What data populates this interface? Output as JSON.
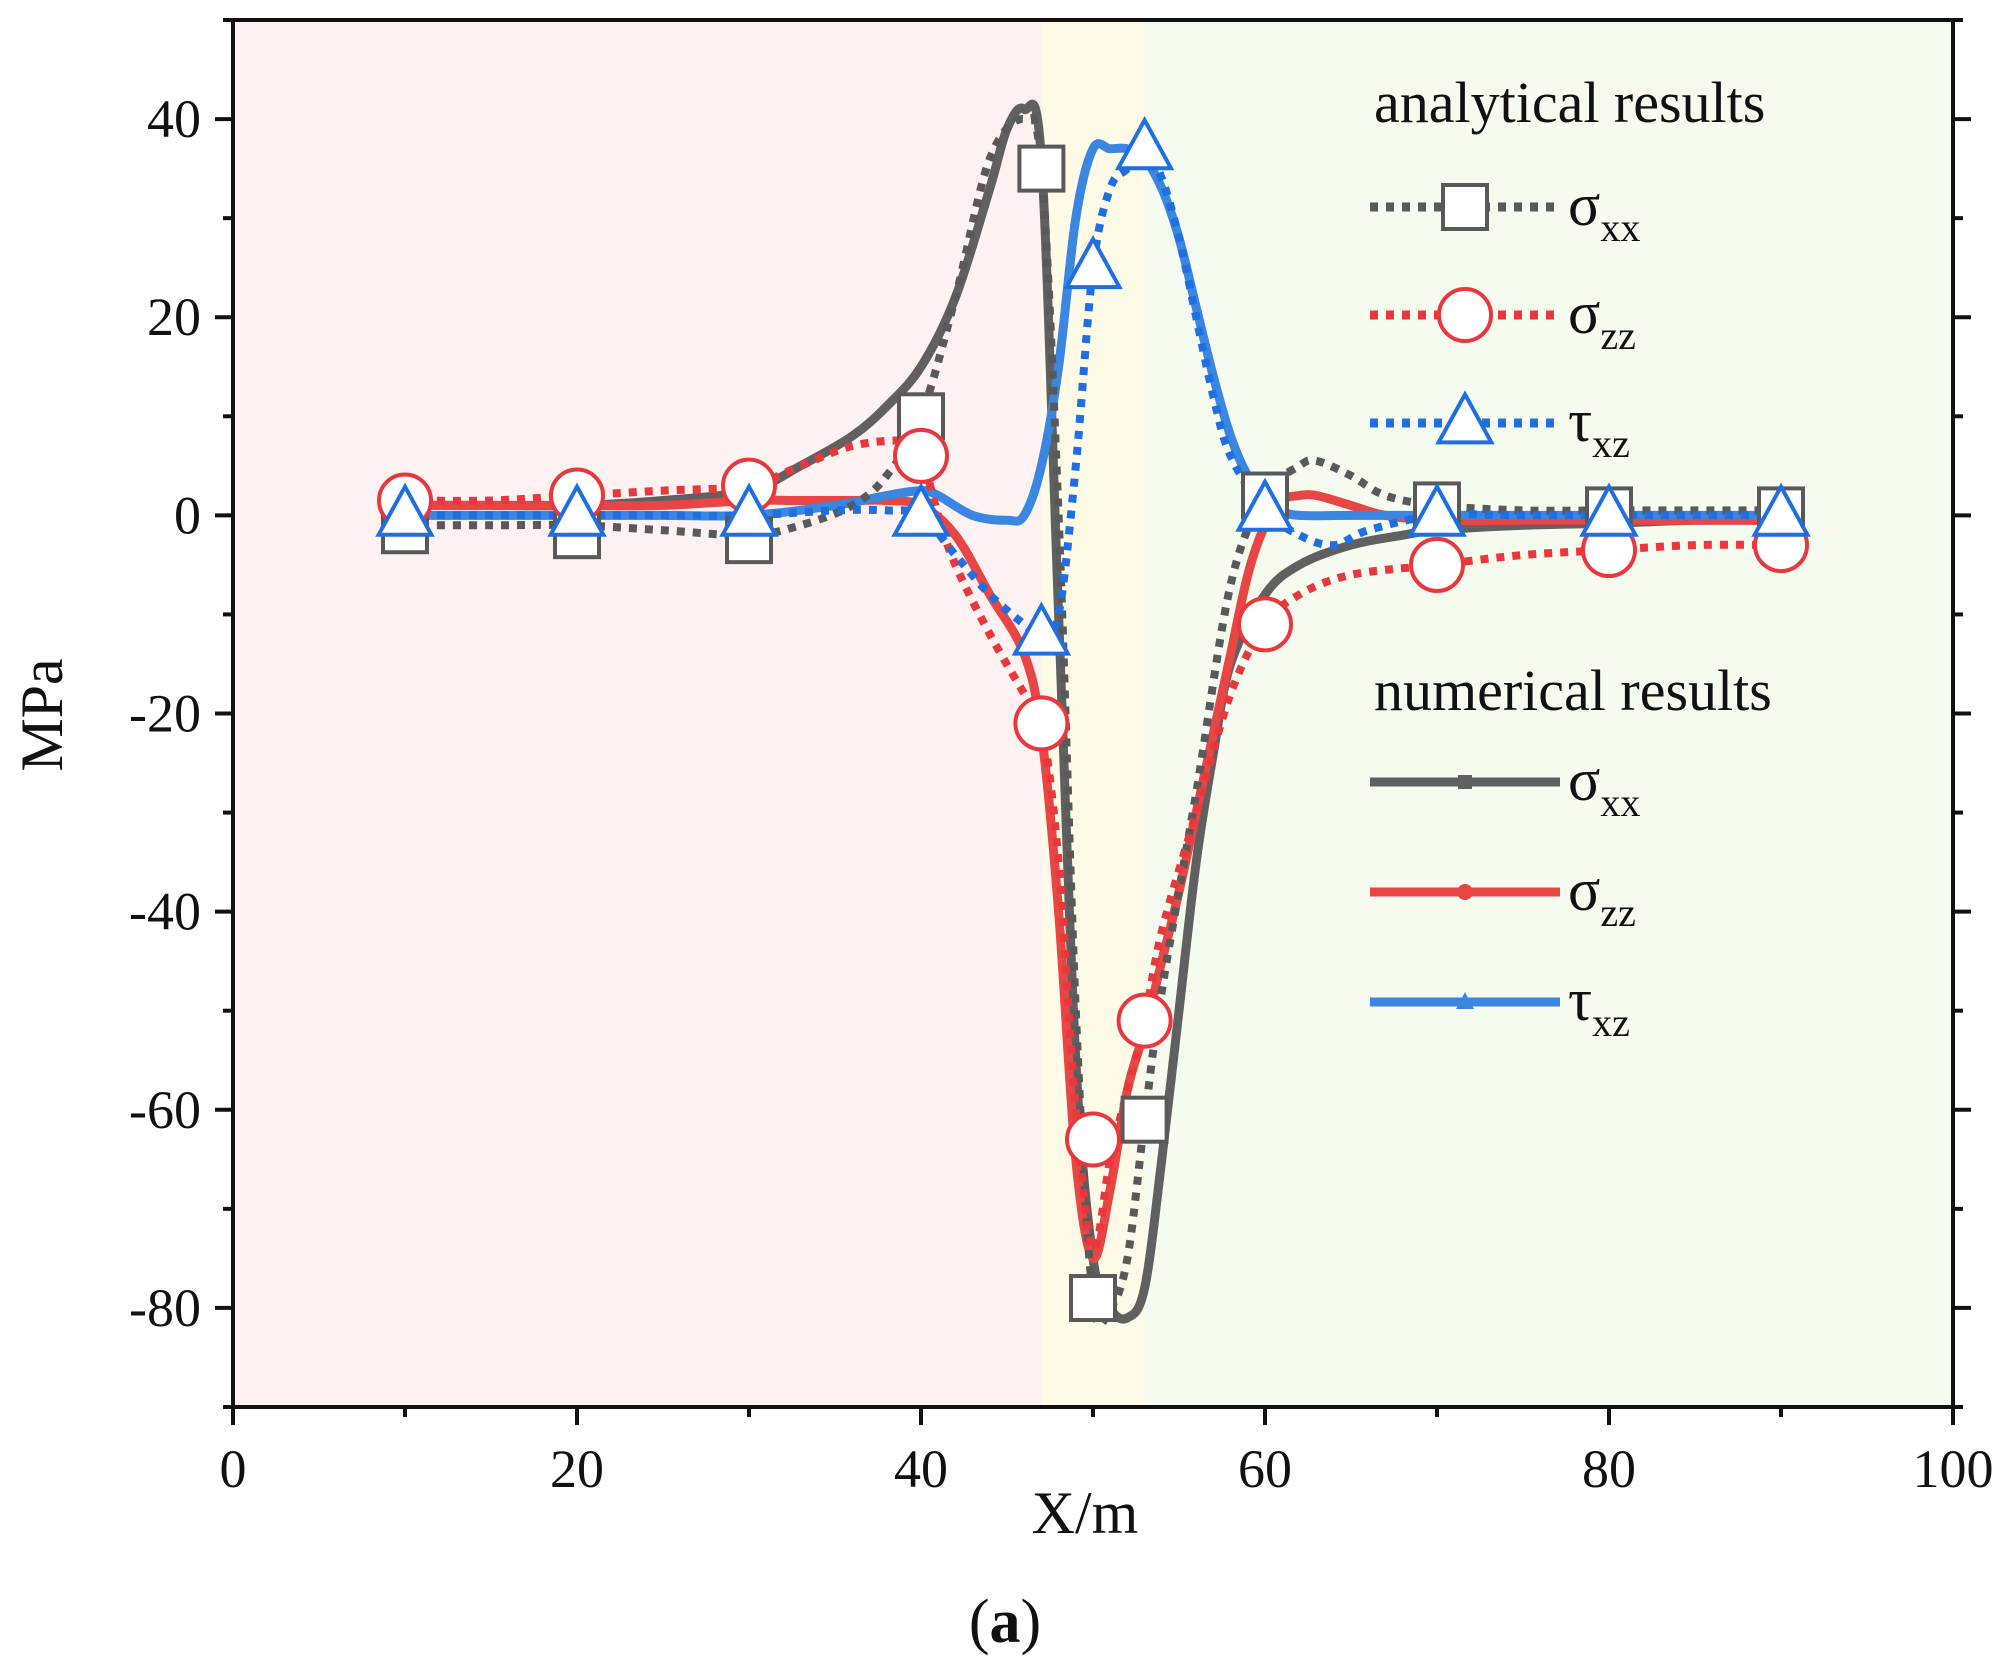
{
  "chart_data": {
    "type": "line",
    "title": "",
    "xlabel": "X/m",
    "ylabel": "MPa",
    "xlim": [
      0,
      100
    ],
    "ylim": [
      -90,
      50
    ],
    "x_ticks": [
      0,
      20,
      40,
      60,
      80,
      100
    ],
    "y_ticks": [
      40,
      20,
      0,
      -20,
      -40,
      -60,
      -80
    ],
    "caption": {
      "open": "(",
      "letter": "a",
      "close": ")"
    },
    "regions": [
      {
        "from": 0,
        "to": 47,
        "color": "#fdf1f1"
      },
      {
        "from": 47,
        "to": 53,
        "color": "#fdfbe8"
      },
      {
        "from": 53,
        "to": 100,
        "color": "#f5fbef"
      }
    ],
    "legend": {
      "analytical_heading": "analytical results",
      "numerical_heading": "numerical results",
      "entries": [
        {
          "group": "analytical",
          "symbol": "σ",
          "sub": "xx",
          "color": "#595959",
          "marker": "square",
          "style": "dotted"
        },
        {
          "group": "analytical",
          "symbol": "σ",
          "sub": "zz",
          "color": "#e8383d",
          "marker": "circle",
          "style": "dotted"
        },
        {
          "group": "analytical",
          "symbol": "τ",
          "sub": "xz",
          "color": "#1f6fe0",
          "marker": "triangle",
          "style": "dotted"
        },
        {
          "group": "numerical",
          "symbol": "σ",
          "sub": "xx",
          "color": "#606060",
          "marker": "square",
          "style": "solid"
        },
        {
          "group": "numerical",
          "symbol": "σ",
          "sub": "zz",
          "color": "#e84545",
          "marker": "circle",
          "style": "solid"
        },
        {
          "group": "numerical",
          "symbol": "τ",
          "sub": "xz",
          "color": "#3a86e0",
          "marker": "triangle",
          "style": "solid"
        }
      ]
    },
    "series": [
      {
        "name": "analytical σxx",
        "group": "analytical",
        "color": "#595959",
        "style": "dotted",
        "marker": "square",
        "x": [
          10,
          20,
          30,
          40,
          47,
          50,
          53,
          60,
          70,
          80,
          90
        ],
        "y": [
          -1.5,
          -2,
          -2.5,
          10,
          35,
          -79,
          -61,
          2,
          1,
          0.5,
          0.5
        ],
        "curve_x": [
          10,
          15,
          20,
          25,
          30,
          33,
          36,
          38,
          40,
          42,
          44,
          46,
          47,
          48,
          49,
          50,
          51,
          52,
          53,
          54,
          56,
          58,
          60,
          62,
          63,
          65,
          67,
          70,
          75,
          80,
          85,
          90
        ],
        "curve_y": [
          -1,
          -1,
          -1,
          -1.5,
          -2,
          -1,
          1,
          4,
          10,
          22,
          36,
          40,
          35,
          0,
          -50,
          -79,
          -80,
          -75,
          -61,
          -48,
          -28,
          -7,
          2,
          5,
          5.5,
          4,
          2,
          1,
          0.5,
          0.5,
          0.5,
          0.5
        ]
      },
      {
        "name": "analytical σzz",
        "group": "analytical",
        "color": "#e8383d",
        "style": "dotted",
        "marker": "circle",
        "x": [
          10,
          20,
          30,
          40,
          47,
          50,
          53,
          60,
          70,
          80,
          90
        ],
        "y": [
          1.5,
          2,
          3,
          6,
          -21,
          -63,
          -51,
          -11,
          -5,
          -3.5,
          -3
        ],
        "curve_x": [
          10,
          15,
          20,
          25,
          30,
          33,
          36,
          39,
          40,
          41,
          42,
          44,
          46,
          47,
          48,
          49,
          50,
          51,
          52,
          53,
          54,
          56,
          58,
          60,
          62,
          65,
          70,
          75,
          80,
          85,
          90
        ],
        "curve_y": [
          1.5,
          1.5,
          2,
          2.5,
          3,
          5,
          7,
          7.5,
          6,
          0,
          -5,
          -12,
          -18,
          -21,
          -35,
          -60,
          -74,
          -65,
          -58,
          -51,
          -42,
          -30,
          -18,
          -11,
          -8,
          -6,
          -5,
          -4,
          -3.5,
          -3,
          -3
        ]
      },
      {
        "name": "analytical τxz",
        "group": "analytical",
        "color": "#1f6fe0",
        "style": "dotted",
        "marker": "triangle",
        "x": [
          10,
          20,
          30,
          40,
          47,
          50,
          53,
          60,
          70,
          80,
          90
        ],
        "y": [
          0,
          0,
          0,
          0,
          -12,
          25,
          37,
          0.5,
          0,
          0,
          0
        ],
        "curve_x": [
          10,
          15,
          20,
          25,
          30,
          35,
          38,
          40,
          42,
          44,
          46,
          47,
          48,
          49,
          50,
          51,
          52,
          53,
          54,
          55,
          56,
          57,
          58,
          60,
          62,
          64,
          66,
          70,
          75,
          80,
          85,
          90
        ],
        "curve_y": [
          0,
          0,
          0,
          0,
          0,
          0.5,
          0.5,
          0,
          -4,
          -8,
          -11,
          -12,
          -10,
          5,
          25,
          33,
          35,
          37,
          34,
          28,
          20,
          12,
          6,
          0.5,
          -2,
          -3,
          -1.5,
          0,
          0,
          0,
          0,
          0
        ]
      },
      {
        "name": "numerical σxx",
        "group": "numerical",
        "color": "#606060",
        "style": "solid",
        "marker": "square",
        "curve_x": [
          10,
          15,
          20,
          25,
          30,
          33,
          36,
          38,
          40,
          42,
          44,
          45,
          46,
          47,
          48,
          49,
          50,
          51,
          52,
          53,
          54,
          55,
          56,
          57,
          58,
          60,
          62,
          65,
          68,
          70,
          75,
          80,
          85,
          90
        ],
        "curve_y": [
          1,
          1,
          1,
          1.5,
          2.5,
          5,
          8,
          11,
          15,
          22,
          33,
          39,
          41,
          36,
          -10,
          -55,
          -75,
          -80,
          -81,
          -78,
          -65,
          -50,
          -35,
          -24,
          -15,
          -8,
          -5,
          -3,
          -2,
          -1.5,
          -1,
          -0.8,
          -0.5,
          -0.5
        ]
      },
      {
        "name": "numerical σzz",
        "group": "numerical",
        "color": "#e84545",
        "style": "solid",
        "marker": "circle",
        "curve_x": [
          10,
          15,
          20,
          25,
          30,
          33,
          36,
          38,
          40,
          42,
          44,
          46,
          47,
          48,
          49,
          50,
          51,
          52,
          53,
          54,
          55,
          56,
          57,
          58,
          59,
          60,
          61,
          62,
          63,
          65,
          67,
          70,
          75,
          80,
          85,
          90
        ],
        "curve_y": [
          1,
          1,
          1,
          1,
          1.5,
          1.5,
          1.5,
          1.5,
          1,
          -2,
          -8,
          -14,
          -22,
          -40,
          -65,
          -75,
          -68,
          -58,
          -52,
          -45,
          -38,
          -30,
          -22,
          -14,
          -6,
          -1,
          1.5,
          2,
          2,
          1,
          0,
          -0.5,
          -0.5,
          -0.5,
          -0.5,
          -0.5
        ]
      },
      {
        "name": "numerical τxz",
        "group": "numerical",
        "color": "#3a86e0",
        "style": "solid",
        "marker": "triangle",
        "curve_x": [
          10,
          15,
          20,
          25,
          30,
          35,
          38,
          40,
          41,
          43,
          45,
          46,
          47,
          48,
          49,
          50,
          51,
          52,
          53,
          54,
          55,
          56,
          57,
          58,
          59,
          60,
          61,
          62,
          65,
          70,
          75,
          80,
          85,
          90
        ],
        "curve_y": [
          0,
          0,
          0,
          0,
          0,
          1,
          2,
          2.5,
          2,
          0,
          -0.5,
          0,
          5,
          15,
          30,
          37,
          37,
          37,
          36,
          33,
          28,
          21,
          14,
          8,
          4,
          2,
          0.5,
          0,
          0,
          0,
          0,
          0,
          0,
          0
        ]
      }
    ]
  }
}
